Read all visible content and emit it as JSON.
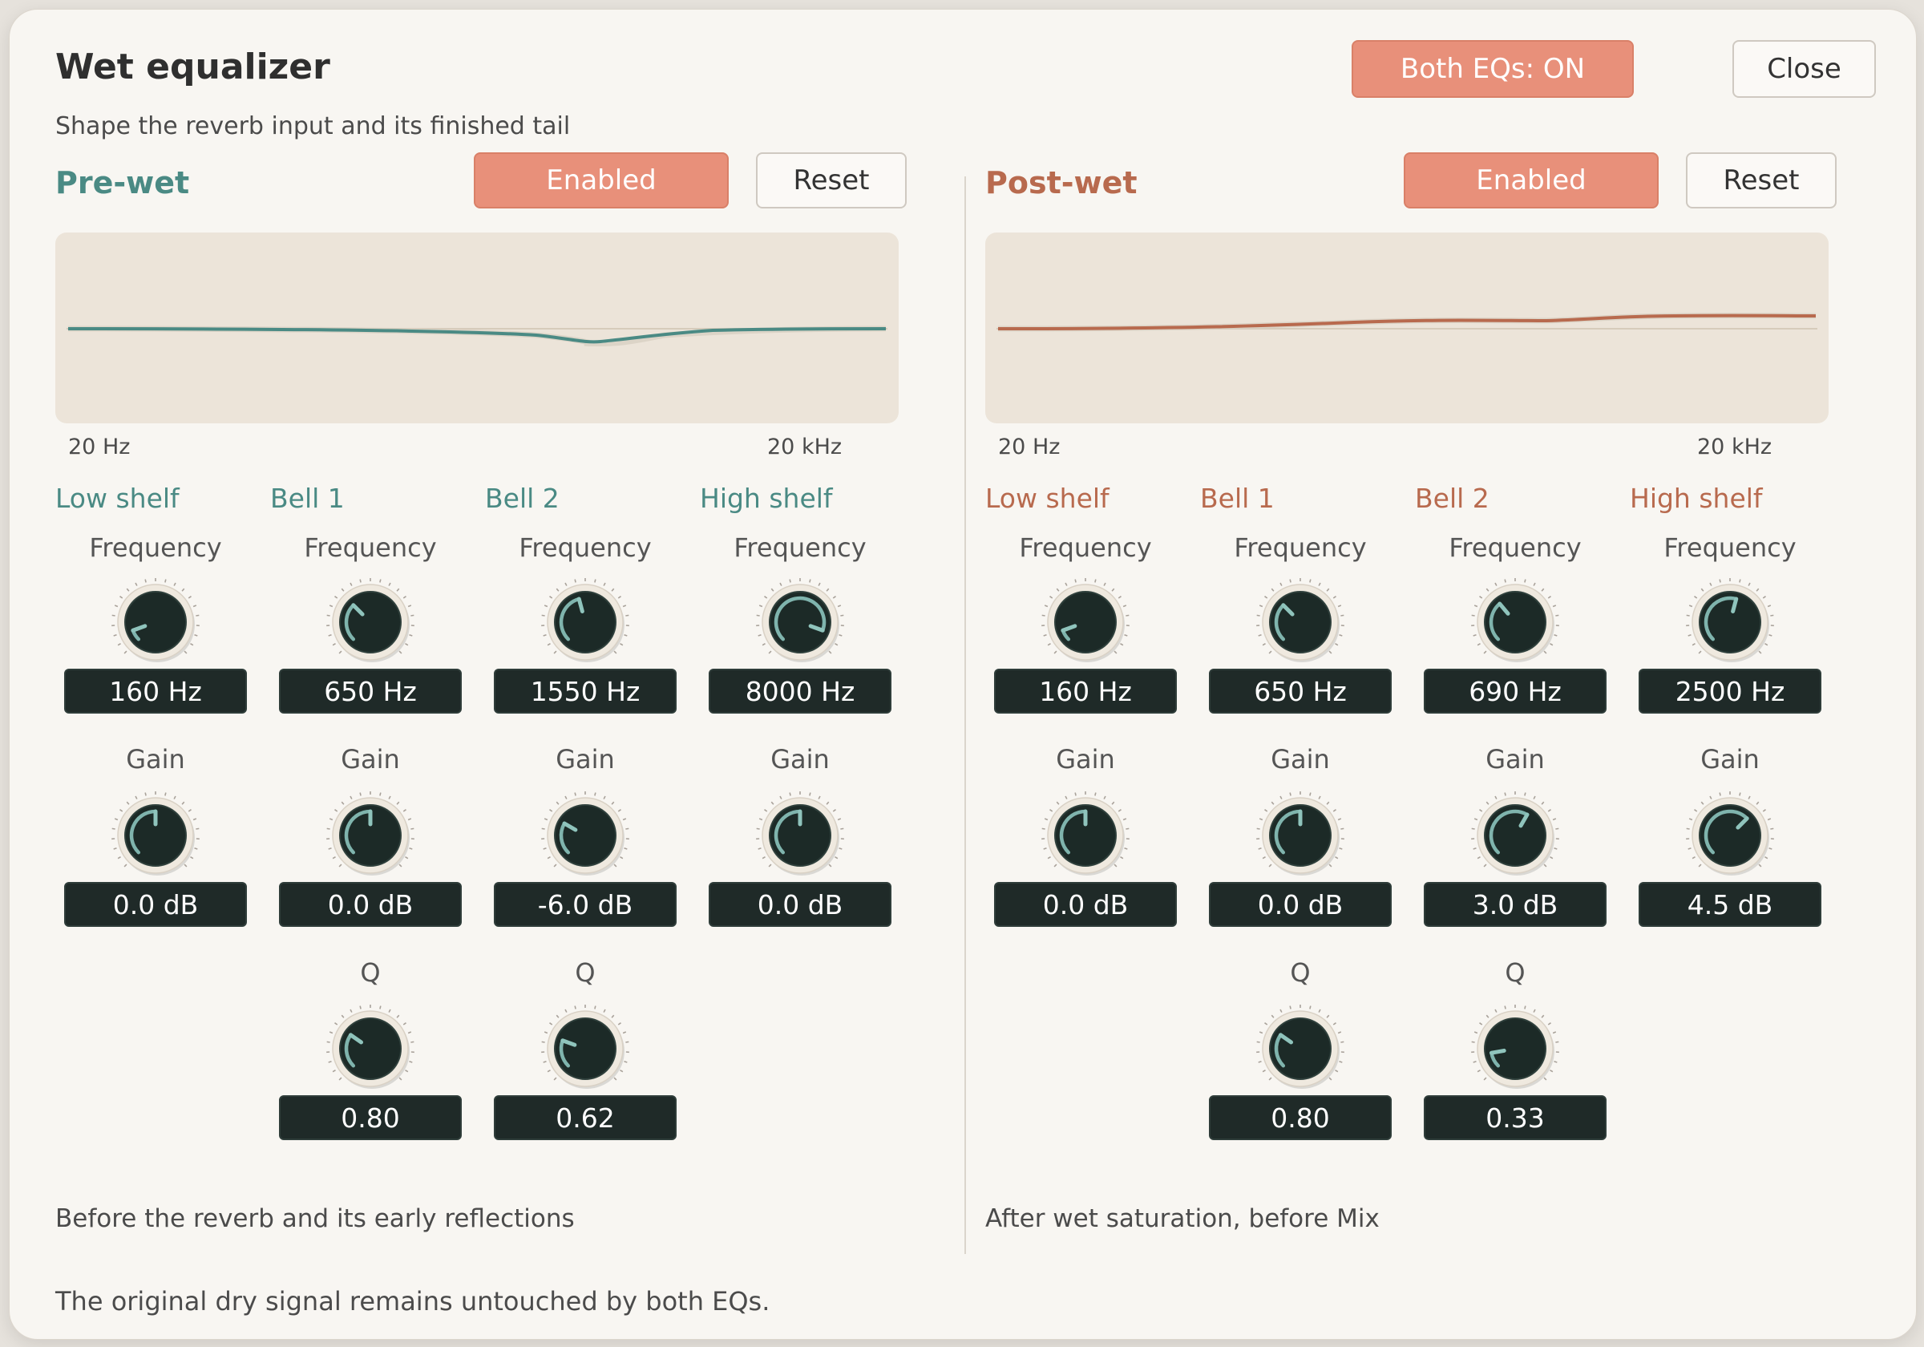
{
  "dialog": {
    "title": "Wet equalizer",
    "subtitle": "Shape the reverb input and its finished tail",
    "both_button": "Both EQs: ON",
    "close_button": "Close",
    "footer": "The original dry signal remains untouched by both EQs."
  },
  "colors": {
    "accent": "#e8907a",
    "pre": "#4a8a84",
    "post": "#b86a4e",
    "value_box": "#1f2a28"
  },
  "pre": {
    "title": "Pre-wet",
    "enabled_label": "Enabled",
    "reset_label": "Reset",
    "axis_min": "20 Hz",
    "axis_max": "20 kHz",
    "note": "Before the reverb and its early reflections",
    "bands": [
      {
        "title": "Low shelf",
        "freq_label": "Frequency",
        "freq": "160 Hz",
        "gain_label": "Gain",
        "gain": "0.0 dB"
      },
      {
        "title": "Bell 1",
        "freq_label": "Frequency",
        "freq": "650 Hz",
        "gain_label": "Gain",
        "gain": "0.0 dB",
        "q_label": "Q",
        "q": "0.80"
      },
      {
        "title": "Bell 2",
        "freq_label": "Frequency",
        "freq": "1550 Hz",
        "gain_label": "Gain",
        "gain": "-6.0 dB",
        "q_label": "Q",
        "q": "0.62"
      },
      {
        "title": "High shelf",
        "freq_label": "Frequency",
        "freq": "8000 Hz",
        "gain_label": "Gain",
        "gain": "0.0 dB"
      }
    ]
  },
  "post": {
    "title": "Post-wet",
    "enabled_label": "Enabled",
    "reset_label": "Reset",
    "axis_min": "20 Hz",
    "axis_max": "20 kHz",
    "note": "After wet saturation, before Mix",
    "bands": [
      {
        "title": "Low shelf",
        "freq_label": "Frequency",
        "freq": "160 Hz",
        "gain_label": "Gain",
        "gain": "0.0 dB"
      },
      {
        "title": "Bell 1",
        "freq_label": "Frequency",
        "freq": "650 Hz",
        "gain_label": "Gain",
        "gain": "0.0 dB",
        "q_label": "Q",
        "q": "0.80"
      },
      {
        "title": "Bell 2",
        "freq_label": "Frequency",
        "freq": "690 Hz",
        "gain_label": "Gain",
        "gain": "3.0 dB",
        "q_label": "Q",
        "q": "0.33"
      },
      {
        "title": "High shelf",
        "freq_label": "Frequency",
        "freq": "2500 Hz",
        "gain_label": "Gain",
        "gain": "4.5 dB"
      }
    ]
  }
}
